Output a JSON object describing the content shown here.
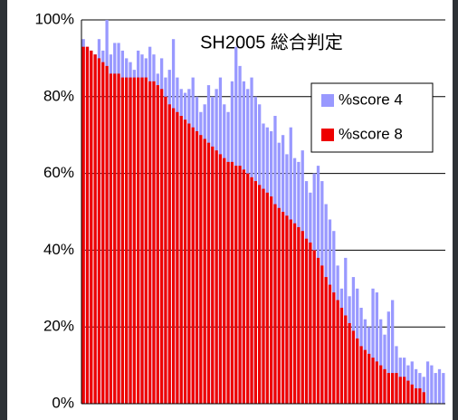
{
  "chart_data": {
    "type": "bar",
    "title": "SH2005 総合判定",
    "categories": [
      null,
      null,
      null,
      null,
      null,
      null,
      null,
      null,
      null,
      null,
      null,
      null,
      null,
      null,
      null,
      null,
      null,
      null,
      null,
      null,
      null,
      null,
      null,
      null,
      null,
      null,
      null,
      null,
      null,
      null,
      null,
      null,
      null,
      null,
      null,
      null,
      null,
      null,
      null,
      null,
      null,
      null,
      null,
      null,
      null,
      null,
      null,
      null,
      null,
      null,
      null,
      null,
      null,
      null,
      null,
      null,
      null,
      null,
      null,
      null,
      null,
      null,
      null,
      null,
      null,
      null,
      null,
      null,
      null,
      null,
      null,
      null,
      null,
      null,
      null,
      null,
      null,
      null,
      null,
      null,
      null,
      null,
      null,
      null,
      null,
      null,
      null,
      null,
      null,
      null,
      null,
      null,
      null
    ],
    "series": [
      {
        "name": "%score 4",
        "color": "#9999ff",
        "values": [
          95,
          93,
          92,
          91,
          95,
          92,
          100,
          91,
          94,
          94,
          92,
          90,
          89,
          87,
          92,
          91,
          90,
          93,
          91,
          86,
          90,
          85,
          87,
          95,
          85,
          82,
          81,
          82,
          85,
          80,
          76,
          78,
          83,
          80,
          82,
          85,
          78,
          76,
          84,
          93,
          88,
          84,
          82,
          85,
          80,
          78,
          73,
          72,
          71,
          75,
          68,
          70,
          65,
          72,
          64,
          63,
          66,
          58,
          55,
          60,
          62,
          58,
          52,
          48,
          45,
          36,
          30,
          38,
          28,
          33,
          30,
          25,
          22,
          20,
          30,
          29,
          22,
          18,
          24,
          27,
          15,
          12,
          12,
          10,
          11,
          9,
          8,
          7,
          11,
          10,
          8,
          9,
          8
        ]
      },
      {
        "name": "%score 8",
        "color": "#ee0000",
        "values": [
          93,
          93,
          92,
          91,
          90,
          89,
          88,
          86,
          86,
          86,
          85,
          85,
          85,
          85,
          85,
          85,
          85,
          84,
          84,
          83,
          82,
          80,
          78,
          77,
          76,
          75,
          74,
          73,
          72,
          71,
          70,
          69,
          68,
          67,
          66,
          65,
          64,
          63,
          63,
          62,
          62,
          61,
          60,
          59,
          58,
          57,
          56,
          55,
          54,
          52,
          51,
          50,
          49,
          48,
          47,
          46,
          45,
          43,
          42,
          40,
          38,
          36,
          33,
          31,
          29,
          27,
          25,
          23,
          21,
          19,
          17,
          15,
          14,
          13,
          12,
          11,
          10,
          9,
          8,
          8,
          8,
          7,
          7,
          6,
          5,
          4,
          4,
          3,
          0,
          0,
          0,
          0,
          0
        ]
      }
    ],
    "ylim": [
      0,
      100
    ],
    "yticks": [
      {
        "value": 0,
        "label": "0%"
      },
      {
        "value": 20,
        "label": "20%"
      },
      {
        "value": 40,
        "label": "40%"
      },
      {
        "value": 60,
        "label": "60%"
      },
      {
        "value": 80,
        "label": "80%"
      },
      {
        "value": 100,
        "label": "100%"
      }
    ],
    "grid": true
  }
}
